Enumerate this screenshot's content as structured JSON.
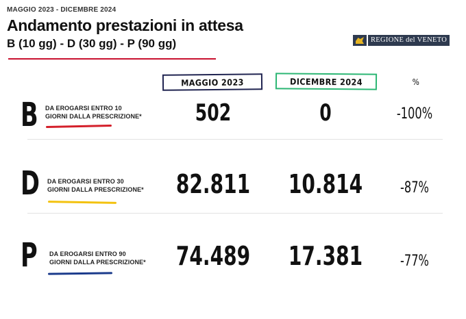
{
  "header": {
    "kicker": "MAGGIO 2023 - DICEMBRE 2024",
    "title": "Andamento prestazioni in attesa",
    "subtitle": "B (10 gg) - D (30 gg) - P (90 gg)"
  },
  "logo": {
    "text": "REGIONE del VENETO"
  },
  "columns": {
    "may": "MAGGIO 2023",
    "dec": "DICEMBRE 2024",
    "pct": "%"
  },
  "rows": [
    {
      "letter": "B",
      "desc_line1": "DA EROGARSI ENTRO 10",
      "desc_line2": "GIORNI DALLA PRESCRIZIONE*",
      "may": "502",
      "dec": "0",
      "pct": "-100%",
      "underline_color": "#d41f2a"
    },
    {
      "letter": "D",
      "desc_line1": "DA EROGARSI ENTRO 30",
      "desc_line2": "GIORNI DALLA PRESCRIZIONE*",
      "may": "82.811",
      "dec": "10.814",
      "pct": "-87%",
      "underline_color": "#f3c20f"
    },
    {
      "letter": "P",
      "desc_line1": "DA EROGARSI ENTRO 90",
      "desc_line2": "GIORNI DALLA PRESCRIZIONE*",
      "may": "74.489",
      "dec": "17.381",
      "pct": "-77%",
      "underline_color": "#1b3b8c"
    }
  ],
  "colors": {
    "title_rule": "#c8102e",
    "may_box": "#1f2350",
    "dec_box": "#2bb673",
    "logo_bg": "#2e3a4f"
  }
}
